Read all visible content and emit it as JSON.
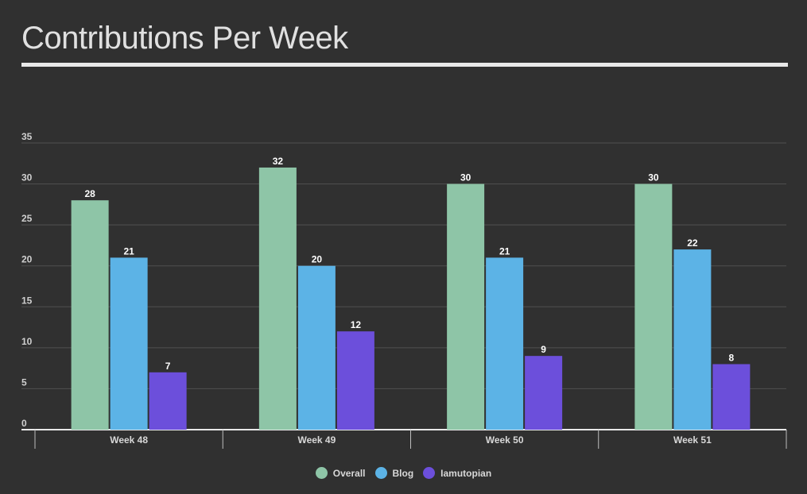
{
  "colors": {
    "background": "#303030",
    "overall": "#8ec5a7",
    "blog": "#5cb3e6",
    "iamutopian": "#6c4fdb"
  },
  "chart_data": {
    "type": "bar",
    "title": "Contributions Per Week",
    "xlabel": "",
    "ylabel": "",
    "categories": [
      "Week 48",
      "Week 49",
      "Week 50",
      "Week 51"
    ],
    "series": [
      {
        "name": "Overall",
        "values": [
          28,
          32,
          30,
          30
        ],
        "color": "#8ec5a7"
      },
      {
        "name": "Blog",
        "values": [
          21,
          20,
          21,
          22
        ],
        "color": "#5cb3e6"
      },
      {
        "name": "Iamutopian",
        "values": [
          7,
          12,
          9,
          8
        ],
        "color": "#6c4fdb"
      }
    ],
    "ylim": [
      0,
      35
    ],
    "yticks": [
      "0",
      "5",
      "10",
      "15",
      "20",
      "25",
      "30",
      "35"
    ],
    "grid": true,
    "data_labels": true,
    "legend_position": "bottom-center"
  }
}
